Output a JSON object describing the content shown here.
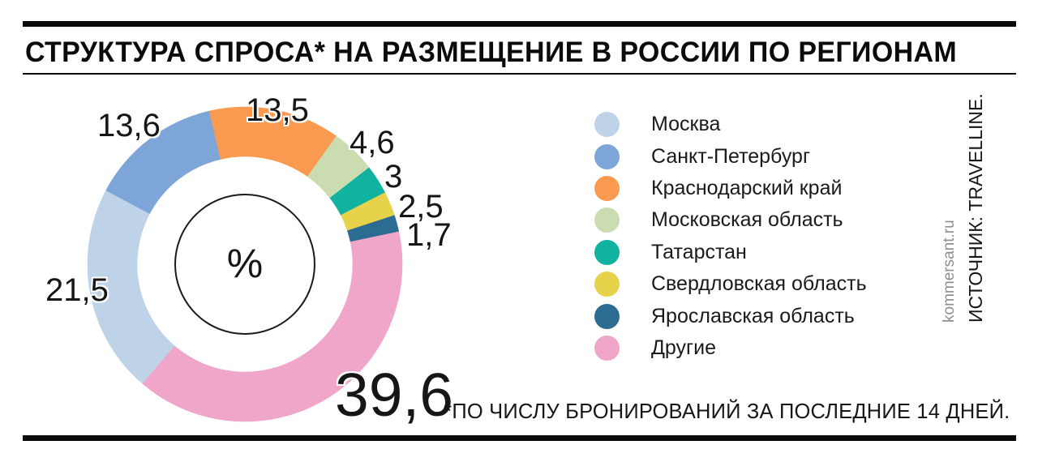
{
  "header": {
    "title": "СТРУКТУРА СПРОСА* НА РАЗМЕЩЕНИЕ В РОССИИ ПО РЕГИОНАМ"
  },
  "chart_data": {
    "type": "pie",
    "subtype": "donut",
    "title": "СТРУКТУРА СПРОСА* НА РАЗМЕЩЕНИЕ В РОССИИ ПО РЕГИОНАМ",
    "unit": "%",
    "center_label": "%",
    "start_angle_deg": 220.6,
    "legend_position": "right",
    "slices": [
      {
        "name": "Москва",
        "value": 21.5,
        "display": "21,5",
        "color": "#BFD3E8"
      },
      {
        "name": "Санкт-Петербург",
        "value": 13.6,
        "display": "13,6",
        "color": "#7EA5D8"
      },
      {
        "name": "Краснодарский край",
        "value": 13.5,
        "display": "13,5",
        "color": "#FA9A50"
      },
      {
        "name": "Московская область",
        "value": 4.6,
        "display": "4,6",
        "color": "#CBDCB1"
      },
      {
        "name": "Татарстан",
        "value": 3,
        "display": "3",
        "color": "#12B2A0"
      },
      {
        "name": "Свердловская область",
        "value": 2.5,
        "display": "2,5",
        "color": "#E7D24B"
      },
      {
        "name": "Ярославская область",
        "value": 1.7,
        "display": "1,7",
        "color": "#2C6C93"
      },
      {
        "name": "Другие",
        "value": 39.6,
        "display": "39,6",
        "color": "#EFA6C8"
      }
    ]
  },
  "footnote": "*ПО ЧИСЛУ БРОНИРОВАНИЙ ЗА ПОСЛЕДНИЕ 14 ДНЕЙ.",
  "credits": {
    "site": "kommersant.ru",
    "source": "ИСТОЧНИК: TRAVELLINE."
  }
}
